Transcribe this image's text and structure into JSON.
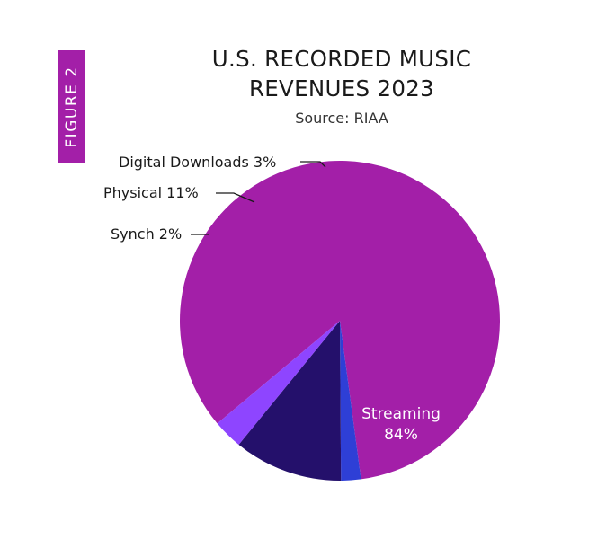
{
  "figure_tag": "FIGURE 2",
  "chart_data": {
    "type": "pie",
    "title_lines": [
      "U.S. RECORDED MUSIC",
      "REVENUES 2023"
    ],
    "subtitle": "Source: RIAA",
    "slices": [
      {
        "name": "Streaming",
        "value": 84,
        "label": "84%",
        "color": "#a31fa8"
      },
      {
        "name": "Synch",
        "value": 2,
        "label": "Synch 2%",
        "color": "#2e3fd6"
      },
      {
        "name": "Physical",
        "value": 11,
        "label": "Physical 11%",
        "color": "#24106b"
      },
      {
        "name": "Digital Downloads",
        "value": 3,
        "label": "Digital Downloads 3%",
        "color": "#8e45ff"
      }
    ]
  }
}
